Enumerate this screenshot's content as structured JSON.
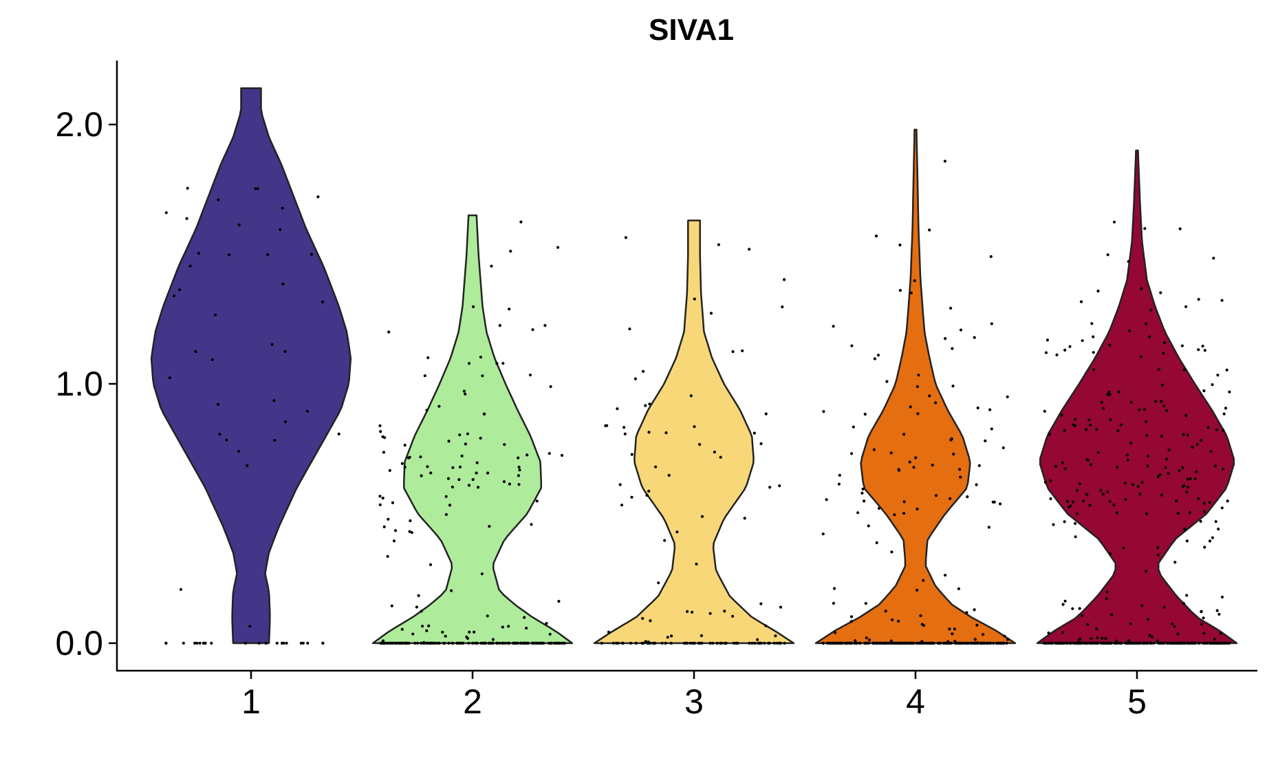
{
  "chart_data": {
    "type": "violin",
    "title": "SIVA1",
    "xlabel": "",
    "ylabel": "",
    "categories": [
      "1",
      "2",
      "3",
      "4",
      "5"
    ],
    "y_ticks": [
      "0.0",
      "1.0",
      "2.0"
    ],
    "ylim": [
      -0.1,
      2.25
    ],
    "grid": false,
    "legend": "none",
    "colors": [
      "#433688",
      "#aeeb9b",
      "#f8d779",
      "#e56e11",
      "#940833"
    ],
    "groups": [
      {
        "name": "1",
        "max": 2.14,
        "point_count": 60,
        "density": [
          [
            0.0,
            0.18
          ],
          [
            0.1,
            0.19
          ],
          [
            0.2,
            0.18
          ],
          [
            0.27,
            0.14
          ],
          [
            0.35,
            0.18
          ],
          [
            0.45,
            0.28
          ],
          [
            0.6,
            0.46
          ],
          [
            0.75,
            0.68
          ],
          [
            0.9,
            0.9
          ],
          [
            1.0,
            0.98
          ],
          [
            1.1,
            1.0
          ],
          [
            1.2,
            0.96
          ],
          [
            1.3,
            0.88
          ],
          [
            1.45,
            0.73
          ],
          [
            1.6,
            0.55
          ],
          [
            1.75,
            0.4
          ],
          [
            1.85,
            0.3
          ],
          [
            1.95,
            0.18
          ],
          [
            2.05,
            0.1
          ],
          [
            2.14,
            0.1
          ]
        ]
      },
      {
        "name": "2",
        "max": 1.65,
        "point_count": 260,
        "density": [
          [
            0.0,
            1.0
          ],
          [
            0.05,
            0.82
          ],
          [
            0.1,
            0.6
          ],
          [
            0.15,
            0.42
          ],
          [
            0.2,
            0.27
          ],
          [
            0.3,
            0.2
          ],
          [
            0.4,
            0.32
          ],
          [
            0.5,
            0.55
          ],
          [
            0.6,
            0.69
          ],
          [
            0.7,
            0.68
          ],
          [
            0.8,
            0.58
          ],
          [
            0.9,
            0.45
          ],
          [
            1.0,
            0.33
          ],
          [
            1.1,
            0.22
          ],
          [
            1.2,
            0.14
          ],
          [
            1.3,
            0.1
          ],
          [
            1.4,
            0.08
          ],
          [
            1.5,
            0.06
          ],
          [
            1.65,
            0.04
          ]
        ]
      },
      {
        "name": "3",
        "max": 1.63,
        "point_count": 130,
        "density": [
          [
            0.0,
            1.0
          ],
          [
            0.05,
            0.8
          ],
          [
            0.1,
            0.58
          ],
          [
            0.18,
            0.36
          ],
          [
            0.28,
            0.22
          ],
          [
            0.38,
            0.19
          ],
          [
            0.48,
            0.3
          ],
          [
            0.6,
            0.52
          ],
          [
            0.7,
            0.6
          ],
          [
            0.8,
            0.58
          ],
          [
            0.9,
            0.46
          ],
          [
            1.0,
            0.3
          ],
          [
            1.1,
            0.18
          ],
          [
            1.2,
            0.1
          ],
          [
            1.35,
            0.07
          ],
          [
            1.5,
            0.06
          ],
          [
            1.63,
            0.06
          ]
        ]
      },
      {
        "name": "4",
        "max": 1.98,
        "point_count": 330,
        "density": [
          [
            0.0,
            1.0
          ],
          [
            0.05,
            0.8
          ],
          [
            0.1,
            0.56
          ],
          [
            0.15,
            0.36
          ],
          [
            0.22,
            0.2
          ],
          [
            0.3,
            0.1
          ],
          [
            0.4,
            0.12
          ],
          [
            0.5,
            0.3
          ],
          [
            0.6,
            0.52
          ],
          [
            0.7,
            0.55
          ],
          [
            0.8,
            0.47
          ],
          [
            0.9,
            0.32
          ],
          [
            1.0,
            0.2
          ],
          [
            1.1,
            0.14
          ],
          [
            1.2,
            0.09
          ],
          [
            1.4,
            0.05
          ],
          [
            1.6,
            0.03
          ],
          [
            1.8,
            0.02
          ],
          [
            1.98,
            0.01
          ]
        ]
      },
      {
        "name": "5",
        "max": 1.9,
        "point_count": 420,
        "density": [
          [
            0.0,
            1.0
          ],
          [
            0.05,
            0.82
          ],
          [
            0.1,
            0.6
          ],
          [
            0.18,
            0.4
          ],
          [
            0.26,
            0.24
          ],
          [
            0.3,
            0.2
          ],
          [
            0.4,
            0.38
          ],
          [
            0.5,
            0.7
          ],
          [
            0.6,
            0.9
          ],
          [
            0.7,
            0.98
          ],
          [
            0.8,
            0.9
          ],
          [
            0.9,
            0.75
          ],
          [
            1.0,
            0.58
          ],
          [
            1.1,
            0.42
          ],
          [
            1.2,
            0.28
          ],
          [
            1.3,
            0.18
          ],
          [
            1.4,
            0.1
          ],
          [
            1.55,
            0.05
          ],
          [
            1.7,
            0.03
          ],
          [
            1.9,
            0.01
          ]
        ]
      }
    ]
  }
}
